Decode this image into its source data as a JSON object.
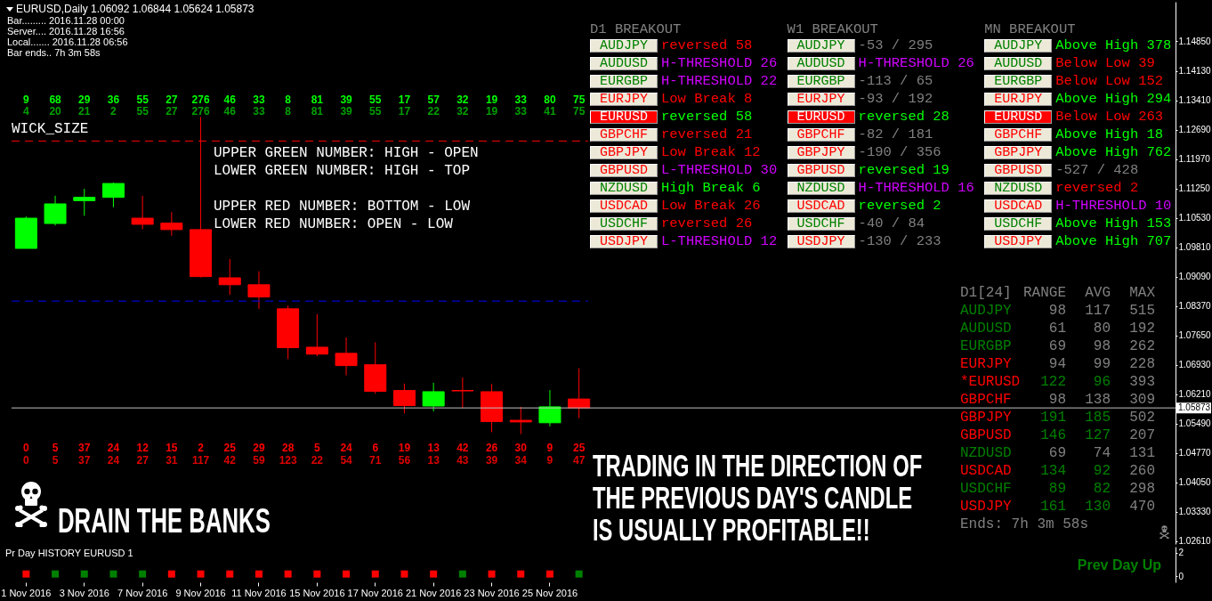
{
  "chart_data": [
    {
      "type": "candlestick",
      "title": "EURUSD,Daily 1.06092 1.06844 1.05624 1.05873",
      "categories": [
        null,
        null,
        null,
        null,
        null,
        null,
        null,
        null,
        null,
        null,
        null,
        null,
        null,
        null,
        null,
        null,
        null,
        null,
        null,
        null,
        null,
        null,
        null,
        null,
        null,
        null,
        null,
        null,
        null,
        null,
        null,
        null,
        null,
        null,
        null,
        null,
        null,
        null,
        null,
        null
      ],
      "ohlc": [
        [
          1.0978,
          1.1056,
          1.0978,
          1.1052
        ],
        [
          1.1039,
          1.1107,
          1.1034,
          1.1087
        ],
        [
          1.1095,
          1.1124,
          1.1058,
          1.1103
        ],
        [
          1.1103,
          1.1139,
          1.1079,
          1.1137
        ],
        [
          1.1052,
          1.1107,
          1.1025,
          1.1037
        ],
        [
          1.104,
          1.1067,
          1.1009,
          1.1024
        ],
        [
          1.1024,
          1.13,
          1.0907,
          1.0909
        ],
        [
          1.0906,
          1.0952,
          1.0864,
          1.0889
        ],
        [
          1.0889,
          1.0922,
          1.083,
          1.0859
        ],
        [
          1.083,
          1.0838,
          1.0707,
          1.0735
        ],
        [
          1.0736,
          1.0817,
          1.0714,
          1.0719
        ],
        [
          1.0721,
          1.076,
          1.0667,
          1.0691
        ],
        [
          1.0693,
          1.0748,
          1.0622,
          1.0628
        ],
        [
          1.063,
          1.0647,
          1.0574,
          1.0593
        ],
        [
          1.0592,
          1.0649,
          1.0579,
          1.0627
        ],
        [
          1.063,
          1.0662,
          1.0587,
          1.0629
        ],
        [
          1.0627,
          1.0646,
          1.0528,
          1.0554
        ],
        [
          1.0557,
          1.059,
          1.0523,
          1.0553
        ],
        [
          1.0551,
          1.0631,
          1.0542,
          1.059
        ],
        [
          1.06092,
          1.06844,
          1.05624,
          1.05873
        ],
        null,
        null,
        null,
        null,
        null,
        null,
        null,
        null,
        null,
        null,
        null,
        null,
        null,
        null,
        null,
        null,
        null,
        null,
        null,
        null
      ],
      "colors": [
        "#00ff00",
        "#00ff00",
        "#00ff00",
        "#00ff00",
        "#ff0000",
        "#ff0000",
        "#ff0000",
        "#ff0000",
        "#ff0000",
        "#ff0000",
        "#ff0000",
        "#ff0000",
        "#ff0000",
        "#ff0000",
        "#00ff00",
        "#ff0000",
        "#ff0000",
        "#ff0000",
        "#00ff00",
        "#ff0000",
        null,
        null,
        null,
        null,
        null,
        null,
        null,
        null,
        null,
        null,
        null,
        null,
        null,
        null,
        null,
        null,
        null,
        null,
        null,
        null
      ],
      "ylim": [
        1.0254,
        1.1582
      ],
      "yticks": [
        {
          "value": 1.1485,
          "label": "1.14850"
        },
        {
          "value": 1.1413,
          "label": "1.14130"
        },
        {
          "value": 1.1341,
          "label": "1.13410"
        },
        {
          "value": 1.1269,
          "label": "1.12690"
        },
        {
          "value": 1.1197,
          "label": "1.11970"
        },
        {
          "value": 1.1125,
          "label": "1.11250"
        },
        {
          "value": 1.1053,
          "label": "1.10530"
        },
        {
          "value": 1.0981,
          "label": "1.09810"
        },
        {
          "value": 1.0909,
          "label": "1.09090"
        },
        {
          "value": 1.0837,
          "label": "1.08370"
        },
        {
          "value": 1.0765,
          "label": "1.07650"
        },
        {
          "value": 1.0693,
          "label": "1.06930"
        },
        {
          "value": 1.0621,
          "label": "1.06210"
        },
        {
          "value": 1.0549,
          "label": "1.05490"
        },
        {
          "value": 1.0477,
          "label": "1.04770"
        },
        {
          "value": 1.0405,
          "label": "1.04050"
        },
        {
          "value": 1.0333,
          "label": "1.03330"
        },
        {
          "value": 1.0261,
          "label": "1.02610"
        }
      ],
      "tick_labels": "y",
      "ref_lines": [
        {
          "axis": "y",
          "value": 1.1241,
          "color": "#ff0000",
          "line_style": "dashed"
        },
        {
          "axis": "y",
          "value": 1.0849,
          "color": "#0000ff",
          "line_style": "dashed"
        },
        {
          "axis": "y",
          "value": 1.05873,
          "label": "1.05873",
          "color": "#c0c0c0"
        }
      ],
      "annotations": [
        "Bar......... 2016.11.28 00:00",
        "Server.... 2016.11.28 16:56",
        "Local....... 2016.11.28 06:56",
        "Bar ends.. 7h 3m 58s",
        "WICK_SIZE",
        "UPPER GREEN NUMBER: HIGH - OPEN",
        "LOWER GREEN NUMBER: HIGH - TOP",
        "UPPER RED NUMBER: BOTTOM - LOW",
        "LOWER RED NUMBER: OPEN - LOW",
        "9 68 29 36 55 27 276 46 33 8 81 39 55 17 57 32 19 33 80 75",
        "4 20 21 2 55 27 276 46 33 8 81 39 55 17 22 32 19 33 41 75",
        "0 5 37 24 12 15 2 25 29 28 5 24 6 19 13 42 26 30 9 25",
        "0 5 37 24 27 31 117 42 59 123 22 54 71 56 13 43 39 34 9 47",
        "DRAIN THE BANKS",
        "TRADING IN THE DIRECTION OF THE PREVIOUS DAY'S CANDLE IS USUALLY PROFITABLE!!"
      ]
    },
    {
      "type": "scatter",
      "title": "Pr Day HISTORY EURUSD 1",
      "categories": [
        "1 Nov 2016",
        null,
        "3 Nov 2016",
        null,
        "7 Nov 2016",
        null,
        "9 Nov 2016",
        null,
        "11 Nov 2016",
        null,
        "15 Nov 2016",
        null,
        "17 Nov 2016",
        null,
        "21 Nov 2016",
        null,
        "23 Nov 2016",
        null,
        "25 Nov 2016",
        null,
        null,
        null,
        null,
        null,
        null,
        null,
        null,
        null,
        null,
        null,
        null,
        null,
        null,
        null,
        null,
        null,
        null,
        null,
        null,
        null
      ],
      "values": [
        0.2,
        0.2,
        0.2,
        0.2,
        0.2,
        0.2,
        0.2,
        0.2,
        0.2,
        0.2,
        0.2,
        0.2,
        0.2,
        0.2,
        0.2,
        0.2,
        0.2,
        0.2,
        0.2,
        0.2,
        null,
        null,
        null,
        null,
        null,
        null,
        null,
        null,
        null,
        null,
        null,
        null,
        null,
        null,
        null,
        null,
        null,
        null,
        null,
        null
      ],
      "colors": [
        "#ff0000",
        "#008000",
        "#008000",
        "#008000",
        "#008000",
        "#ff0000",
        "#ff0000",
        "#ff0000",
        "#ff0000",
        "#ff0000",
        "#ff0000",
        "#ff0000",
        "#ff0000",
        "#ff0000",
        "#ff0000",
        "#008000",
        "#ff0000",
        "#ff0000",
        "#ff0000",
        "#008000",
        null,
        null,
        null,
        null,
        null,
        null,
        null,
        null,
        null,
        null,
        null,
        null,
        null,
        null,
        null,
        null,
        null,
        null,
        null,
        null
      ],
      "marker": "square",
      "ylim": [
        -0.5,
        2.5
      ],
      "yticks": [
        0,
        2
      ],
      "annotations": [
        "Prev Day Up"
      ]
    },
    {
      "type": "other",
      "annotations": [
        "D1 BREAKOUT",
        "W1 BREAKOUT",
        "MN BREAKOUT",
        "AUDJPY",
        "reversed 58",
        "AUDJPY",
        "-53 / 295",
        "AUDJPY",
        "Above High 378",
        "AUDUSD",
        "H-THRESHOLD 26",
        "AUDUSD",
        "H-THRESHOLD 26",
        "AUDUSD",
        "Below Low 39",
        "EURGBP",
        "H-THRESHOLD 22",
        "EURGBP",
        "-113 / 65",
        "EURGBP",
        "Below Low 152",
        "EURJPY",
        "Low Break 8",
        "EURJPY",
        "-93 / 192",
        "EURJPY",
        "Above High 294",
        "EURUSD",
        "reversed 58",
        "EURUSD",
        "reversed 28",
        "EURUSD",
        "Below Low 263",
        "GBPCHF",
        "reversed 21",
        "GBPCHF",
        "-82 / 181",
        "GBPCHF",
        "Above High 18",
        "GBPJPY",
        "Low Break 12",
        "GBPJPY",
        "-190 / 356",
        "GBPJPY",
        "Above High 762",
        "GBPUSD",
        "L-THRESHOLD 30",
        "GBPUSD",
        "reversed 19",
        "GBPUSD",
        "-527 / 428",
        "NZDUSD",
        "High Break 6",
        "NZDUSD",
        "H-THRESHOLD 16",
        "NZDUSD",
        "reversed 2",
        "USDCAD",
        "Low Break 26",
        "USDCAD",
        "reversed 2",
        "USDCAD",
        "H-THRESHOLD 10",
        "USDCHF",
        "reversed 26",
        "USDCHF",
        "-40 / 84",
        "USDCHF",
        "Above High 153",
        "USDJPY",
        "L-THRESHOLD 12",
        "USDJPY",
        "-130 / 233",
        "USDJPY",
        "Above High 707"
      ],
      "colors": [
        "#808080",
        "#808080",
        "#808080",
        "#008000",
        "#ff0000",
        "#008000",
        "#808080",
        "#008000",
        "#00ff00",
        "#008000",
        "#d000ff",
        "#008000",
        "#d000ff",
        "#008000",
        "#ff0000",
        "#008000",
        "#d000ff",
        "#008000",
        "#808080",
        "#008000",
        "#ff0000",
        "#ff0000",
        "#ff0000",
        "#ff0000",
        "#808080",
        "#ff0000",
        "#00ff00",
        "#ffffff",
        "#00ff00",
        "#ffffff",
        "#00ff00",
        "#ffffff",
        "#ff0000",
        "#ff0000",
        "#ff0000",
        "#ff0000",
        "#808080",
        "#ff0000",
        "#00ff00",
        "#ff0000",
        "#ff0000",
        "#ff0000",
        "#808080",
        "#ff0000",
        "#00ff00",
        "#ff0000",
        "#d000ff",
        "#ff0000",
        "#00ff00",
        "#ff0000",
        "#808080",
        "#008000",
        "#00ff00",
        "#008000",
        "#d000ff",
        "#008000",
        "#ff0000",
        "#ff0000",
        "#ff0000",
        "#ff0000",
        "#00ff00",
        "#ff0000",
        "#d000ff",
        "#008000",
        "#ff0000",
        "#008000",
        "#808080",
        "#008000",
        "#00ff00",
        "#ff0000",
        "#d000ff",
        "#ff0000",
        "#808080",
        "#ff0000",
        "#00ff00"
      ]
    },
    {
      "type": "other",
      "annotations": [
        "D1[24]",
        "RANGE",
        "AVG",
        "MAX",
        "AUDJPY",
        "98",
        "117",
        "515",
        "AUDUSD",
        "61",
        "80",
        "192",
        "EURGBP",
        "69",
        "98",
        "262",
        "EURJPY",
        "94",
        "99",
        "228",
        "*EURUSD",
        "122",
        "96",
        "393",
        "GBPCHF",
        "98",
        "138",
        "309",
        "GBPJPY",
        "191",
        "185",
        "502",
        "GBPUSD",
        "146",
        "127",
        "207",
        "NZDUSD",
        "69",
        "74",
        "131",
        "USDCAD",
        "134",
        "92",
        "260",
        "USDCHF",
        "89",
        "82",
        "298",
        "USDJPY",
        "161",
        "130",
        "470",
        "Ends: 7h 3m 58s"
      ],
      "colors": [
        "#808080",
        "#808080",
        "#808080",
        "#808080",
        "#008000",
        "#808080",
        "#808080",
        "#808080",
        "#008000",
        "#808080",
        "#808080",
        "#808080",
        "#008000",
        "#808080",
        "#808080",
        "#808080",
        "#ff0000",
        "#808080",
        "#808080",
        "#808080",
        "#ff0000",
        "#008000",
        "#008000",
        "#808080",
        "#ff0000",
        "#808080",
        "#808080",
        "#808080",
        "#ff0000",
        "#008000",
        "#008000",
        "#808080",
        "#ff0000",
        "#008000",
        "#008000",
        "#808080",
        "#008000",
        "#808080",
        "#808080",
        "#808080",
        "#ff0000",
        "#008000",
        "#008000",
        "#808080",
        "#008000",
        "#008000",
        "#008000",
        "#808080",
        "#ff0000",
        "#008000",
        "#008000",
        "#808080",
        "#808080"
      ]
    }
  ]
}
